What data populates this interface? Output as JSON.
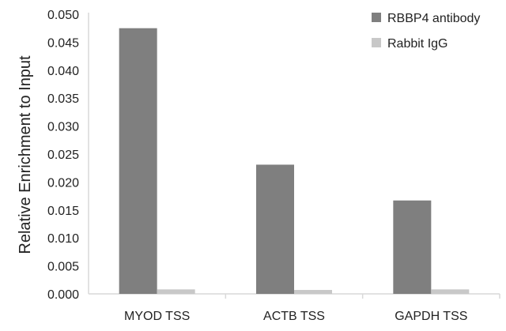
{
  "chart_data": {
    "type": "bar",
    "categories": [
      "MYOD TSS",
      "ACTB TSS",
      "GAPDH TSS"
    ],
    "series": [
      {
        "name": "RBBP4 antibody",
        "values": [
          0.0475,
          0.0231,
          0.0167
        ],
        "color": "#7f7f7f"
      },
      {
        "name": "Rabbit IgG",
        "values": [
          0.0008,
          0.0007,
          0.0008
        ],
        "color": "#c8c8c8"
      }
    ],
    "title": "",
    "xlabel": "",
    "ylabel": "Relative Enrichment to Input",
    "ylim": [
      0,
      0.05
    ],
    "yticks": [
      "0.000",
      "0.005",
      "0.010",
      "0.015",
      "0.020",
      "0.025",
      "0.030",
      "0.035",
      "0.040",
      "0.045",
      "0.050"
    ],
    "grid": false,
    "legend_position": "top-right",
    "axis_color": "#d9d9d9"
  }
}
